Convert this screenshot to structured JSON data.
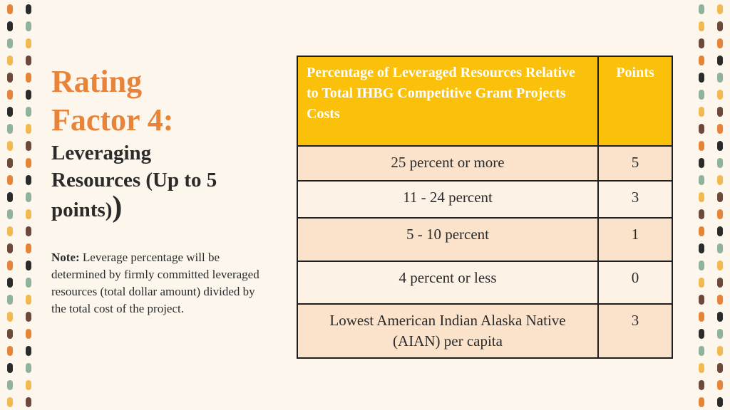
{
  "title": "Rating Factor 4:",
  "subtitle": "Leveraging Resources (Up to 5 points)",
  "subtitle_tail": ")",
  "note": {
    "label": "Note:",
    "text": "Leverage percentage will be determined by firmly committed leveraged resources (total dollar amount) divided by the total cost of the project."
  },
  "table": {
    "header": [
      "Percentage of Leveraged Resources Relative to Total IHBG Competitive Grant  Projects Costs",
      "Points"
    ],
    "rows": [
      [
        "25 percent or more",
        5
      ],
      [
        "11 - 24 percent",
        3
      ],
      [
        "5 - 10 percent",
        1
      ],
      [
        "4 percent or less",
        0
      ],
      [
        "Lowest American Indian Alaska Native (AIAN) per capita",
        3
      ]
    ]
  }
}
